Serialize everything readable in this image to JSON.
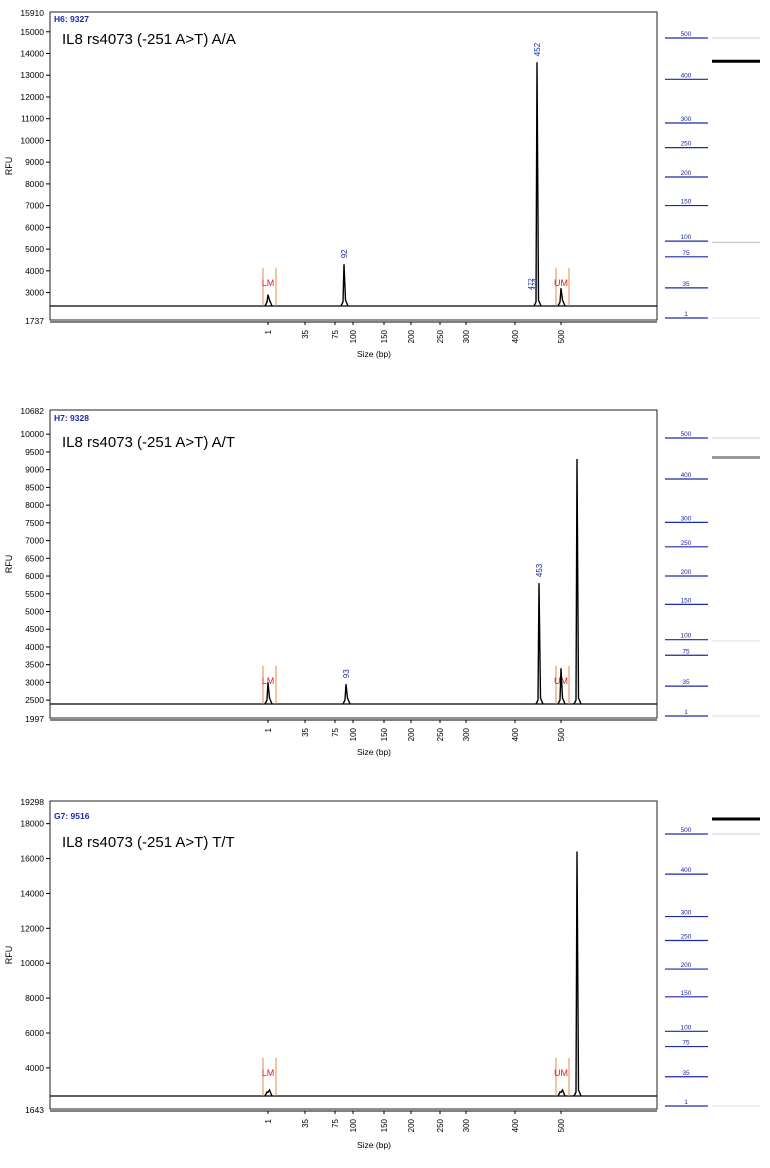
{
  "panels": [
    {
      "well_label": "H6: 9327",
      "title": "IL8 rs4073  (-251 A>T) A/A",
      "ylabel": "RFU",
      "xlabel": "Size (bp)",
      "y_min": 1737,
      "y_max": 15910,
      "y_ticks": [
        3000,
        4000,
        5000,
        6000,
        7000,
        8000,
        9000,
        10000,
        11000,
        12000,
        13000,
        14000,
        15000
      ],
      "x_ticks": [
        "1",
        "35",
        "75",
        "100",
        "150",
        "200",
        "250",
        "300",
        "400",
        "500"
      ],
      "peaks": [
        {
          "bp": "1",
          "rfu": 2900,
          "label": "",
          "color": "#000000"
        },
        {
          "bp": "92",
          "rfu": 4300,
          "label": "92",
          "color": "#000000"
        },
        {
          "bp": "452",
          "rfu": 13600,
          "label": "452",
          "color": "#000000"
        },
        {
          "bp": "500",
          "rfu": 3200,
          "label": "",
          "color": "#000000"
        }
      ],
      "small_labels": [
        "472",
        "474"
      ],
      "markers": [
        {
          "text": "LM",
          "bp": "1"
        },
        {
          "text": "UM",
          "bp": "500"
        }
      ],
      "ladder_labels": [
        "500",
        "400",
        "300",
        "250",
        "200",
        "150",
        "100",
        "75",
        "35",
        "1"
      ]
    },
    {
      "well_label": "H7: 9328",
      "title": "IL8 rs4073  (-251 A>T) A/T",
      "ylabel": "RFU",
      "xlabel": "Size (bp)",
      "y_min": 1997,
      "y_max": 10682,
      "y_ticks": [
        2500,
        3000,
        3500,
        4000,
        4500,
        5000,
        5500,
        6000,
        6500,
        7000,
        7500,
        8000,
        8500,
        9000,
        9500,
        10000
      ],
      "x_ticks": [
        "1",
        "35",
        "75",
        "100",
        "150",
        "200",
        "250",
        "300",
        "400",
        "500"
      ],
      "peaks": [
        {
          "bp": "1",
          "rfu": 3000,
          "label": "",
          "color": "#000000"
        },
        {
          "bp": "93",
          "rfu": 2950,
          "label": "93",
          "color": "#000000"
        },
        {
          "bp": "453",
          "rfu": 5800,
          "label": "453",
          "color": "#000000"
        },
        {
          "bp": "500",
          "rfu": 3400,
          "label": "",
          "color": "#000000"
        },
        {
          "bp": "560",
          "rfu": 9300,
          "label": "",
          "color": "#000000"
        }
      ],
      "small_labels": [],
      "markers": [
        {
          "text": "LM",
          "bp": "1"
        },
        {
          "text": "UM",
          "bp": "500"
        }
      ],
      "ladder_labels": [
        "500",
        "400",
        "300",
        "250",
        "200",
        "150",
        "100",
        "75",
        "35",
        "1"
      ]
    },
    {
      "well_label": "G7: 9516",
      "title": "IL8 rs4073  (-251 A>T) T/T",
      "ylabel": "RFU",
      "xlabel": "Size (bp)",
      "y_min": 1643,
      "y_max": 19298,
      "y_ticks": [
        4000,
        6000,
        8000,
        10000,
        12000,
        14000,
        16000,
        18000
      ],
      "x_ticks": [
        "1",
        "35",
        "75",
        "100",
        "150",
        "200",
        "250",
        "300",
        "400",
        "500"
      ],
      "peaks": [
        {
          "bp": "1",
          "rfu": 2600,
          "label": "",
          "color": "#000000"
        },
        {
          "bp": "500",
          "rfu": 2600,
          "label": "",
          "color": "#000000"
        },
        {
          "bp": "560",
          "rfu": 16400,
          "label": "",
          "color": "#000000"
        }
      ],
      "small_labels": [],
      "markers": [
        {
          "text": "LM",
          "bp": "1"
        },
        {
          "text": "UM",
          "bp": "500"
        }
      ],
      "ladder_labels": [
        "500",
        "400",
        "300",
        "250",
        "200",
        "150",
        "100",
        "75",
        "35",
        "1"
      ]
    }
  ],
  "chart_data": [
    {
      "type": "line",
      "title": "IL8 rs4073  (-251 A>T) A/A",
      "xlabel": "Size (bp)",
      "ylabel": "RFU",
      "ylim": [
        1737,
        15910
      ],
      "peaks_bp": [
        1,
        92,
        452,
        500
      ],
      "peaks_rfu": [
        2900,
        4300,
        13600,
        3200
      ]
    },
    {
      "type": "line",
      "title": "IL8 rs4073  (-251 A>T) A/T",
      "xlabel": "Size (bp)",
      "ylabel": "RFU",
      "ylim": [
        1997,
        10682
      ],
      "peaks_bp": [
        1,
        93,
        453,
        500,
        560
      ],
      "peaks_rfu": [
        3000,
        2950,
        5800,
        3400,
        9300
      ]
    },
    {
      "type": "line",
      "title": "IL8 rs4073  (-251 A>T) T/T",
      "xlabel": "Size (bp)",
      "ylabel": "RFU",
      "ylim": [
        1643,
        19298
      ],
      "peaks_bp": [
        1,
        500,
        560
      ],
      "peaks_rfu": [
        2600,
        2600,
        16400
      ]
    }
  ]
}
